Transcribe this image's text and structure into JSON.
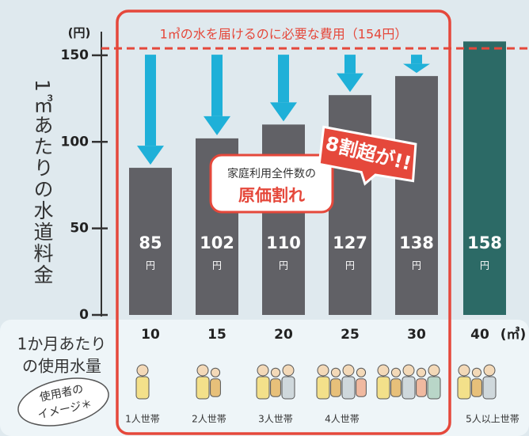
{
  "chart_data": {
    "type": "bar",
    "y_unit_label": "(円)",
    "y_axis_label": "1㎥あたりの水道料金",
    "x_axis_label_lines": [
      "1か月あたり",
      "の使用水量"
    ],
    "x_unit_label": "(㎥)",
    "categories": [
      "10",
      "15",
      "20",
      "25",
      "30",
      "40"
    ],
    "values": [
      85,
      102,
      110,
      127,
      138,
      158
    ],
    "value_unit_label": "円",
    "colors": [
      "#616166",
      "#616166",
      "#616166",
      "#616166",
      "#616166",
      "#2c6a66"
    ],
    "ylim": [
      0,
      160
    ],
    "yticks": [
      0,
      50,
      100,
      150
    ],
    "grid": false,
    "reference_line": {
      "value": 154,
      "label": "1㎥の水を届けるのに必要な費用（154円）",
      "color": "#e5483b"
    },
    "callout": {
      "line1": "家庭利用全件数の",
      "line2": "原価割れ"
    },
    "badge": "8割超が!!",
    "image_label_lines": [
      "使用者の",
      "イメージ＊"
    ],
    "households": [
      "1人世帯",
      "2人世帯",
      "3人世帯",
      "4人世帯",
      null,
      "5人以上世帯"
    ]
  }
}
